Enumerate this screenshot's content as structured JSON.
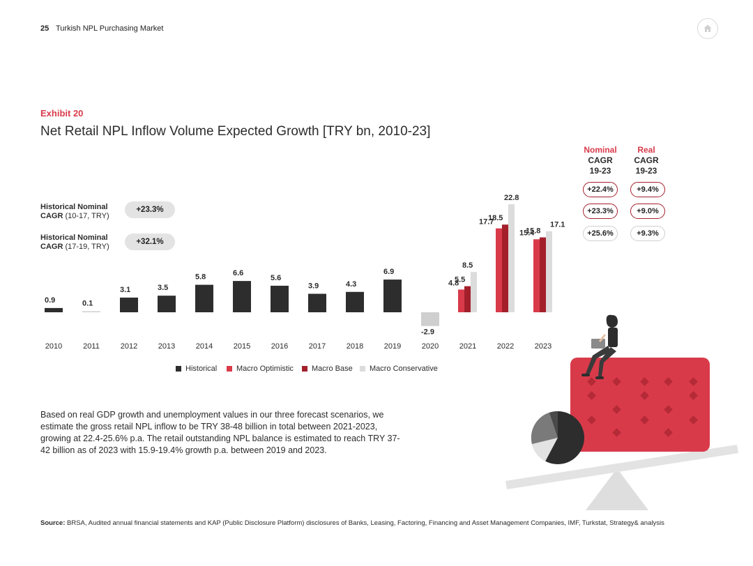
{
  "header": {
    "page_number": "25",
    "title": "Turkish NPL Purchasing Market"
  },
  "icons": {
    "home": "home-icon"
  },
  "exhibit": {
    "label": "Exhibit 20",
    "title": "Net Retail NPL Inflow Volume Expected Growth [TRY bn, 2010-23]"
  },
  "historical_cagr": [
    {
      "label_bold_1": "Historical Nominal",
      "label_bold_2": "CAGR",
      "label_rest": "(10-17, TRY)",
      "value": "+23.3%"
    },
    {
      "label_bold_1": "Historical Nominal",
      "label_bold_2": "CAGR",
      "label_rest": "(17-19, TRY)",
      "value": "+32.1%"
    }
  ],
  "cagr_table": {
    "nominal_header": {
      "accent": "Nominal",
      "line2": "CAGR",
      "line3": "19-23"
    },
    "real_header": {
      "accent": "Real",
      "line2": "CAGR",
      "line3": "19-23"
    },
    "rows": [
      {
        "nominal": "+22.4%",
        "real": "+9.4%"
      },
      {
        "nominal": "+23.3%",
        "real": "+9.0%"
      },
      {
        "nominal": "+25.6%",
        "real": "+9.3%"
      }
    ]
  },
  "chart_data": {
    "type": "bar",
    "categories": [
      "2010",
      "2011",
      "2012",
      "2013",
      "2014",
      "2015",
      "2016",
      "2017",
      "2018",
      "2019",
      "2020",
      "2021",
      "2022",
      "2023"
    ],
    "historical": [
      0.9,
      0.1,
      3.1,
      3.5,
      5.8,
      6.6,
      5.6,
      3.9,
      4.3,
      6.9,
      -2.9,
      null,
      null,
      null
    ],
    "forecast": {
      "categories": [
        "2021",
        "2022",
        "2023"
      ],
      "series": [
        {
          "name": "Macro Optimistic",
          "values": [
            4.8,
            17.7,
            15.4
          ]
        },
        {
          "name": "Macro Base",
          "values": [
            5.5,
            18.5,
            15.8
          ]
        },
        {
          "name": "Macro Conservative",
          "values": [
            8.5,
            22.8,
            17.1
          ]
        }
      ]
    },
    "legend": [
      "Historical",
      "Macro Optimistic",
      "Macro Base",
      "Macro Conservative"
    ],
    "colors": {
      "historical": "#2d2d2d",
      "optimistic": "#d93a4a",
      "base": "#a3202b",
      "conservative": "#dcdcdc",
      "light_historical": "#cfcfcf"
    },
    "legend_position": "bottom"
  },
  "body_text": "Based on real GDP growth and unemployment values in our three forecast scenarios, we estimate the gross retail NPL inflow to be TRY 38-48 billion in total between 2021-2023, growing at 22.4-25.6% p.a. The retail outstanding NPL balance is estimated to reach TRY 37-42 billion as of 2023 with 15.9-19.4% growth p.a. between 2019 and 2023.",
  "source": {
    "label": "Source:",
    "text": "BRSA, Audited annual financial statements and KAP (Public Disclosure Platform) disclosures of Banks, Leasing, Factoring, Financing and Asset Management Companies, IMF, Turkstat, Strategy& analysis"
  },
  "illustration": {
    "name": "person-on-scale-illustration",
    "colors": {
      "card": "#d93a4a",
      "pie_dark": "#2d2d2d",
      "pie_mid": "#7a7a7a",
      "pie_light": "#e3e3e3"
    }
  }
}
